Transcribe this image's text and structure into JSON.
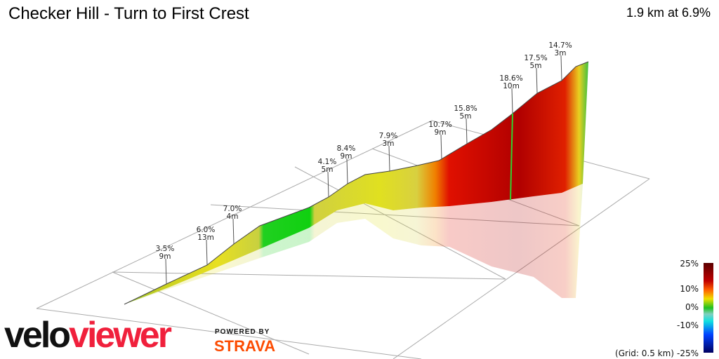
{
  "header": {
    "title": "Checker Hill - Turn to First Crest",
    "summary": "1.9 km at 6.9%"
  },
  "chart_data": {
    "type": "area",
    "title": "Checker Hill - Turn to First Crest",
    "view": "3d-elevation-profile",
    "distance_km": 1.9,
    "average_gradient_pct": 6.9,
    "grid": true,
    "grid_note": "(Grid: 0.5 km)",
    "annotations": [
      {
        "gradient": "3.5%",
        "length": "9m"
      },
      {
        "gradient": "6.0%",
        "length": "13m"
      },
      {
        "gradient": "7.0%",
        "length": "4m"
      },
      {
        "gradient": "4.1%",
        "length": "5m"
      },
      {
        "gradient": "8.4%",
        "length": "9m"
      },
      {
        "gradient": "7.9%",
        "length": "3m"
      },
      {
        "gradient": "10.7%",
        "length": "9m"
      },
      {
        "gradient": "15.8%",
        "length": "5m"
      },
      {
        "gradient": "18.6%",
        "length": "10m"
      },
      {
        "gradient": "17.5%",
        "length": "5m"
      },
      {
        "gradient": "14.7%",
        "length": "3m"
      }
    ],
    "legend": {
      "placement": "bottom-right",
      "ticks": [
        "25%",
        "10%",
        "0%",
        "-10%",
        "-25%"
      ],
      "colors": [
        "#5a0000",
        "#e00000",
        "#ff8c00",
        "#f0e000",
        "#20c020",
        "#10e0e0",
        "#0050ff",
        "#000060"
      ]
    }
  },
  "branding": {
    "logo_left": "velo",
    "logo_right": "viewer",
    "powered_by": "POWERED BY",
    "strava": "STRAVA"
  }
}
